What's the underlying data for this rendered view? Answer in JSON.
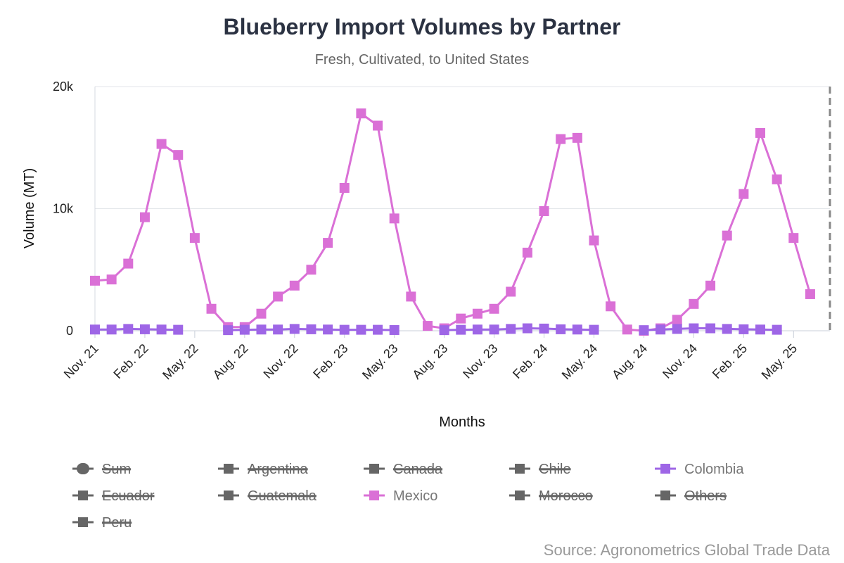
{
  "chart_data": {
    "type": "line",
    "title": "Blueberry Import Volumes by Partner",
    "subtitle": "Fresh, Cultivated, to United States",
    "xlabel": "Months",
    "ylabel": "Volume (MT)",
    "ylim": [
      0,
      20000
    ],
    "yticks": [
      0,
      10000,
      20000
    ],
    "ytick_labels": [
      "0",
      "10k",
      "20k"
    ],
    "x": [
      "Nov. 21",
      "Dec. 21",
      "Jan. 22",
      "Feb. 22",
      "Mar. 22",
      "Apr. 22",
      "May. 22",
      "Jun. 22",
      "Jul. 22",
      "Aug. 22",
      "Sep. 22",
      "Oct. 22",
      "Nov. 22",
      "Dec. 22",
      "Jan. 23",
      "Feb. 23",
      "Mar. 23",
      "Apr. 23",
      "May. 23",
      "Jun. 23",
      "Jul. 23",
      "Aug. 23",
      "Sep. 23",
      "Oct. 23",
      "Nov. 23",
      "Dec. 23",
      "Jan. 24",
      "Feb. 24",
      "Mar. 24",
      "Apr. 24",
      "May. 24",
      "Jun. 24",
      "Jul. 24",
      "Aug. 24",
      "Sep. 24",
      "Oct. 24",
      "Nov. 24",
      "Dec. 24",
      "Jan. 25",
      "Feb. 25",
      "Mar. 25",
      "Apr. 25",
      "May. 25",
      "Jun. 25"
    ],
    "xtick_labels": [
      "Nov. 21",
      "Feb. 22",
      "May. 22",
      "Aug. 22",
      "Nov. 22",
      "Feb. 23",
      "May. 23",
      "Aug. 23",
      "Nov. 23",
      "Feb. 24",
      "May. 24",
      "Aug. 24",
      "Nov. 24",
      "Feb. 25",
      "May. 25"
    ],
    "grid": true,
    "legend_position": "bottom",
    "series": [
      {
        "name": "Mexico",
        "color": "#da70d6",
        "values": [
          4100,
          4200,
          5500,
          9300,
          15300,
          14400,
          7600,
          1800,
          300,
          300,
          1400,
          2800,
          3700,
          5000,
          7200,
          11700,
          17800,
          16800,
          9200,
          2800,
          400,
          200,
          1000,
          1400,
          1800,
          3200,
          6400,
          9800,
          15700,
          15800,
          7400,
          2000,
          100,
          0,
          200,
          900,
          2200,
          3700,
          7800,
          11200,
          16200,
          12400,
          7600,
          3000
        ]
      },
      {
        "name": "Colombia",
        "color": "#9e66e6",
        "values": [
          100,
          100,
          150,
          120,
          100,
          80,
          null,
          null,
          50,
          80,
          100,
          100,
          150,
          120,
          100,
          80,
          80,
          80,
          60,
          null,
          null,
          50,
          80,
          100,
          100,
          150,
          200,
          180,
          120,
          100,
          80,
          null,
          null,
          50,
          100,
          150,
          200,
          200,
          150,
          120,
          100,
          80,
          null,
          null
        ]
      }
    ]
  },
  "legend": [
    {
      "name": "Sum",
      "color": "#666666",
      "hidden": true,
      "marker": "circle"
    },
    {
      "name": "Argentina",
      "color": "#666666",
      "hidden": true,
      "marker": "square"
    },
    {
      "name": "Canada",
      "color": "#666666",
      "hidden": true,
      "marker": "square"
    },
    {
      "name": "Chile",
      "color": "#666666",
      "hidden": true,
      "marker": "square"
    },
    {
      "name": "Colombia",
      "color": "#9e66e6",
      "hidden": false,
      "marker": "square"
    },
    {
      "name": "Ecuador",
      "color": "#666666",
      "hidden": true,
      "marker": "square"
    },
    {
      "name": "Guatemala",
      "color": "#666666",
      "hidden": true,
      "marker": "square"
    },
    {
      "name": "Mexico",
      "color": "#da70d6",
      "hidden": false,
      "marker": "square"
    },
    {
      "name": "Morocco",
      "color": "#666666",
      "hidden": true,
      "marker": "square"
    },
    {
      "name": "Others",
      "color": "#666666",
      "hidden": true,
      "marker": "square"
    },
    {
      "name": "Peru",
      "color": "#666666",
      "hidden": true,
      "marker": "square"
    }
  ],
  "source": "Source: Agronometrics Global Trade Data"
}
